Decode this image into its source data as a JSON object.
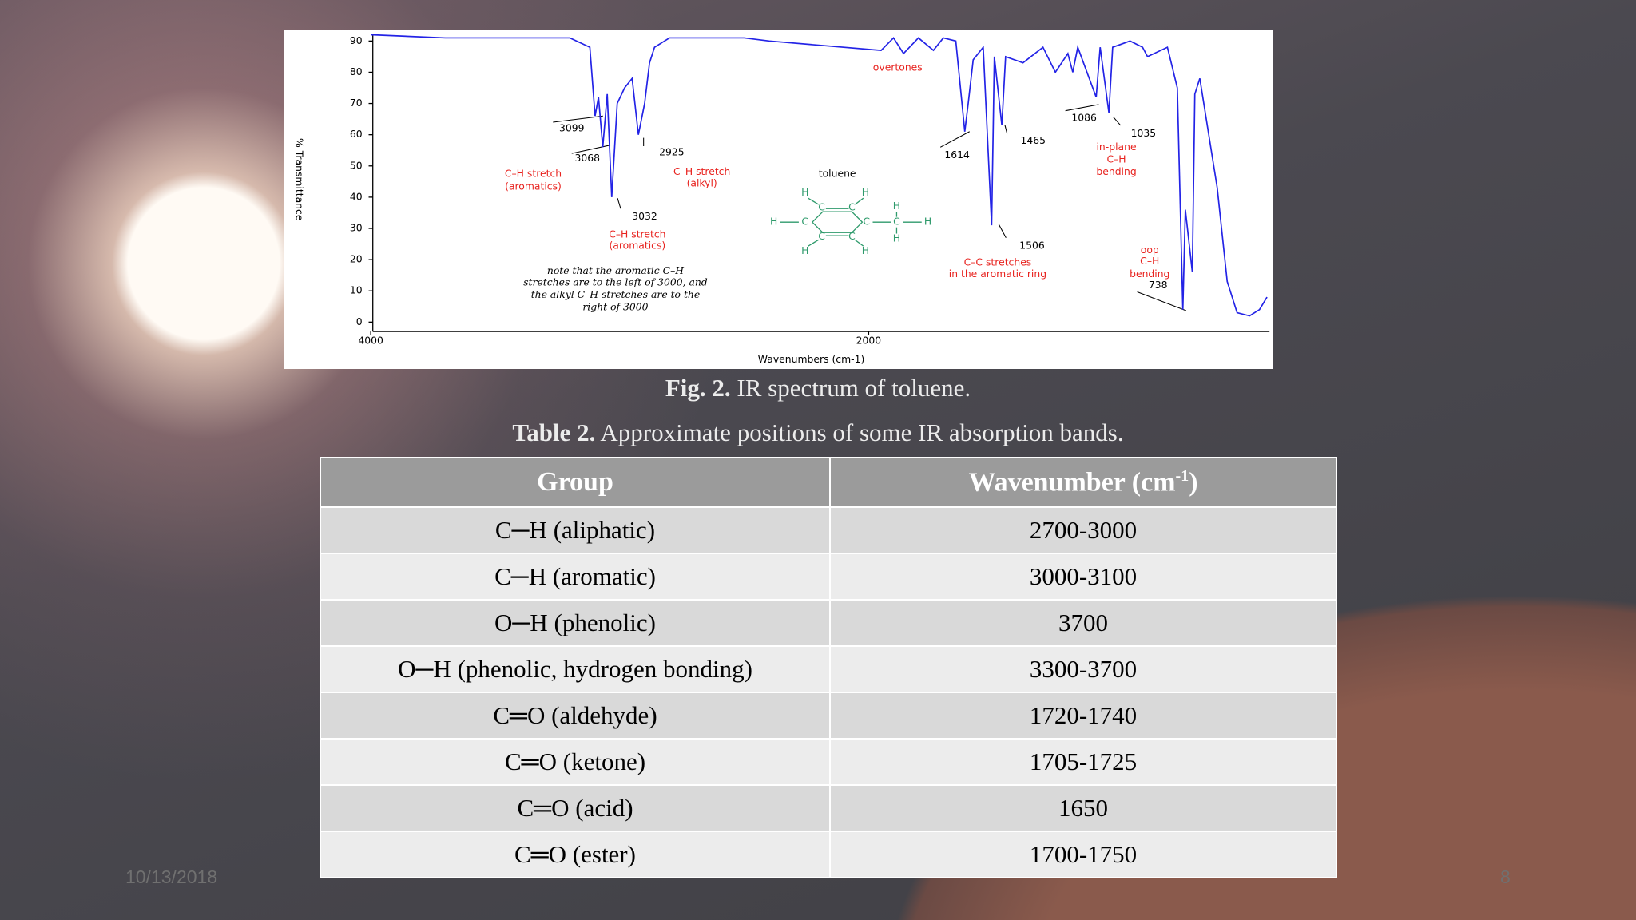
{
  "chart_data": {
    "type": "line",
    "x_label": "Wavenumbers (cm-1)",
    "y_label": "% Transmittance",
    "xlim": [
      4000,
      390
    ],
    "ylim": [
      -3,
      92
    ],
    "xticks": [
      4000,
      2000
    ],
    "yticks": [
      0,
      10,
      20,
      30,
      40,
      50,
      60,
      70,
      80,
      90
    ],
    "x": [
      4000,
      3700,
      3200,
      3120,
      3099,
      3085,
      3068,
      3050,
      3032,
      3010,
      2980,
      2950,
      2925,
      2900,
      2880,
      2860,
      2800,
      2500,
      2400,
      1950,
      1900,
      1860,
      1800,
      1740,
      1700,
      1650,
      1614,
      1600,
      1580,
      1540,
      1506,
      1495,
      1465,
      1450,
      1380,
      1300,
      1250,
      1200,
      1180,
      1160,
      1086,
      1070,
      1035,
      1020,
      950,
      900,
      880,
      800,
      760,
      738,
      728,
      700,
      690,
      670,
      600,
      560,
      520,
      470,
      430,
      400
    ],
    "series": [
      {
        "name": "toluene",
        "color": "#2323e6",
        "values": [
          92,
          91,
          91,
          88,
          66,
          72,
          56,
          73,
          40,
          70,
          75,
          78,
          60,
          70,
          83,
          88,
          91,
          91,
          90,
          87,
          91,
          86,
          91,
          87,
          91,
          90,
          61,
          70,
          84,
          88,
          31,
          85,
          63,
          85,
          83,
          88,
          80,
          86,
          80,
          88,
          72,
          88,
          67,
          88,
          90,
          88,
          85,
          88,
          75,
          4,
          36,
          16,
          73,
          78,
          43,
          13,
          3,
          2,
          4,
          8
        ]
      }
    ],
    "annotations": [
      "overtones",
      "3099",
      "3068",
      "2925",
      "C–H stretch",
      "(aromatics)",
      "C–H stretch",
      "(alkyl)",
      "toluene",
      "3032",
      "C–H stretch",
      "(aromatics)",
      "note that the aromatic C–H",
      "stretches are to the left of 3000, and",
      "the alkyl C–H stretches are to the",
      "right of 3000",
      "1614",
      "1465",
      "1086",
      "1035",
      "in-plane",
      "C–H",
      "bending",
      "1506",
      "C–C stretches",
      "in the aromatic ring",
      "oop",
      "C–H",
      "bending",
      "738"
    ],
    "structure": [
      "H",
      "H",
      "H",
      "C",
      "C",
      "C",
      "C",
      "C",
      "C",
      "C",
      "H",
      "H",
      "H",
      "H",
      "H"
    ]
  },
  "figure_caption": {
    "label": "Fig. 2.",
    "text": "IR spectrum of toluene."
  },
  "table_caption": {
    "label": "Table 2.",
    "text": "Approximate positions of some IR absorption bands."
  },
  "table": {
    "header": {
      "group": "Group",
      "wavenumber": {
        "text": "Wavenumber (cm",
        "sup": "-1",
        "tail": ")"
      }
    },
    "rows": [
      [
        "C─H (aliphatic)",
        "2700-3000"
      ],
      [
        "C─H (aromatic)",
        "3000-3100"
      ],
      [
        "O─H (phenolic)",
        "3700"
      ],
      [
        "O─H (phenolic, hydrogen bonding)",
        "3300-3700"
      ],
      [
        "C═O (aldehyde)",
        "1720-1740"
      ],
      [
        "C═O (ketone)",
        "1705-1725"
      ],
      [
        "C═O (acid)",
        "1650"
      ],
      [
        "C═O (ester)",
        "1700-1750"
      ]
    ]
  },
  "footer": {
    "date": "10/13/2018",
    "page": "8"
  }
}
